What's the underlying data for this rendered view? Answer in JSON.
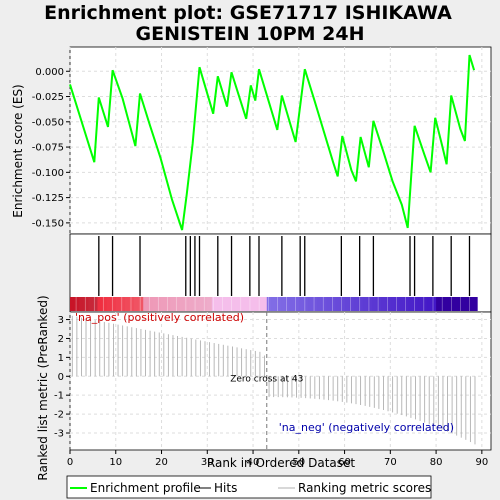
{
  "chart_data": {
    "type": "line",
    "title_lines": [
      "Enrichment plot: GSE71717 ISHIKAWA",
      "GENISTEIN 10PM 24H"
    ],
    "xlabel": "Rank in Ordered Dataset",
    "es_ylabel": "Enrichment score (ES)",
    "rank_ylabel": "Ranked list metric (PreRanked)",
    "x_ticks": [
      0,
      10,
      20,
      30,
      40,
      50,
      60,
      70,
      80,
      90
    ],
    "es_ticks": [
      0.0,
      -0.025,
      -0.05,
      -0.075,
      -0.1,
      -0.125,
      -0.15
    ],
    "es_tick_labels": [
      "0.000",
      "-0.025",
      "-0.050",
      "-0.075",
      "-0.100",
      "-0.125",
      "-0.150"
    ],
    "rank_ticks": [
      3,
      2,
      1,
      0,
      -1,
      -2,
      -3
    ],
    "xlim": [
      0,
      92
    ],
    "es_ylim": [
      -0.161,
      0.024
    ],
    "rank_ylim": [
      -3.9,
      3.4
    ],
    "grid": true,
    "legend_position": "bottom",
    "colors": {
      "es_line": "#00ff00",
      "hits": "#000000",
      "metric_bars": "#b0b0b0",
      "zero_cross": "#777777"
    },
    "series": [
      {
        "name": "Enrichment profile",
        "x": [
          0,
          5.3,
          6.3,
          8.3,
          9.3,
          11.5,
          14.3,
          15.3,
          17.5,
          19.8,
          22.3,
          24.5,
          25.5,
          26.8,
          28.3,
          31.3,
          32.3,
          34.3,
          35.3,
          38.5,
          39.5,
          40.5,
          41.3,
          45.3,
          46.3,
          49.3,
          51.3,
          53.5,
          57.5,
          58.5,
          59.5,
          61.5,
          62.5,
          63.5,
          65.3,
          66.3,
          68.5,
          70.5,
          72.5,
          73.8,
          75.3,
          77.5,
          78.8,
          79.8,
          81.3,
          82.3,
          83.3,
          85.3,
          86.3,
          87.3,
          88.3
        ],
        "y": [
          -0.013,
          -0.09,
          -0.026,
          -0.055,
          0.001,
          -0.027,
          -0.074,
          -0.022,
          -0.054,
          -0.086,
          -0.127,
          -0.157,
          -0.122,
          -0.072,
          0.004,
          -0.042,
          -0.005,
          -0.035,
          -0.001,
          -0.047,
          -0.014,
          -0.029,
          0.002,
          -0.058,
          -0.024,
          -0.07,
          0.002,
          -0.03,
          -0.09,
          -0.104,
          -0.064,
          -0.098,
          -0.109,
          -0.065,
          -0.095,
          -0.049,
          -0.08,
          -0.109,
          -0.132,
          -0.155,
          -0.054,
          -0.083,
          -0.1,
          -0.046,
          -0.073,
          -0.092,
          -0.024,
          -0.057,
          -0.069,
          0.016,
          0.001
        ]
      }
    ],
    "hits": [
      6.3,
      9.3,
      15.3,
      25.3,
      26.3,
      27.3,
      28.3,
      32.3,
      35.3,
      39.3,
      41.3,
      46.3,
      50.3,
      51.3,
      59.3,
      63.3,
      66.3,
      74.3,
      75.3,
      79.3,
      83.3,
      87.3
    ],
    "ranked_metric_start": 3.2,
    "ranked_metric_end": -3.6,
    "zero_cross_rank": 43,
    "n_ranks": 89,
    "labels": {
      "pos": "'na_pos' (positively correlated)",
      "neg": "'na_neg' (negatively correlated)",
      "zero_cross": "Zero cross at 43"
    },
    "legend": [
      {
        "name": "Enrichment profile",
        "kind": "line",
        "color": "#00ff00"
      },
      {
        "name": "Hits",
        "kind": "line",
        "color": "#000000"
      },
      {
        "name": "Ranking metric scores",
        "kind": "line",
        "color": "#b0b0b0"
      }
    ]
  }
}
